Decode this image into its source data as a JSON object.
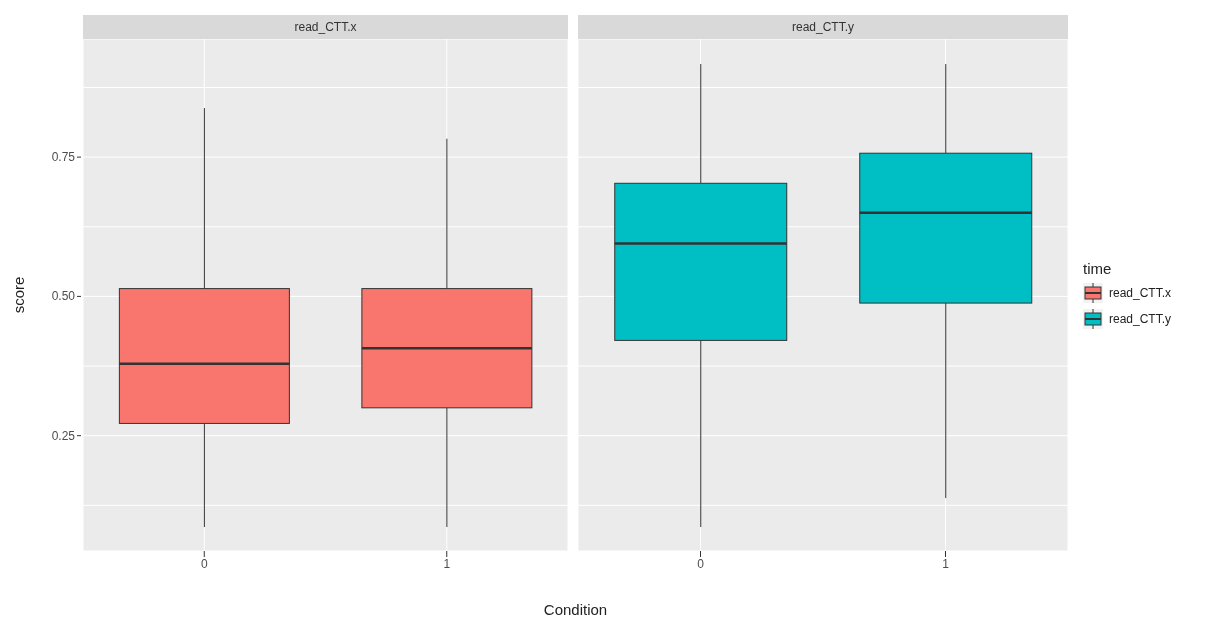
{
  "chart_data": [
    {
      "type": "box",
      "title": "read_CTT.x",
      "xlabel": "Condition",
      "ylabel": "score",
      "legend_title": "time",
      "legend": "right",
      "grid": true,
      "categories": [
        "0",
        "1"
      ],
      "ylim": [
        0.043,
        0.962
      ],
      "yticks": [
        {
          "value": 0.125,
          "label": null
        },
        0.25,
        {
          "value": 0.375,
          "label": null
        },
        {
          "value": 0.5,
          "label": "0.50"
        },
        {
          "value": 0.625,
          "label": null
        },
        0.75,
        {
          "value": 0.875,
          "label": null
        }
      ],
      "series": [
        {
          "name": "read_CTT.x",
          "color": "#f8766d",
          "boxes": [
            {
              "low": 0.086,
              "q1": 0.272,
              "median": 0.379,
              "q3": 0.514,
              "high": 0.838
            },
            {
              "low": 0.086,
              "q1": 0.3,
              "median": 0.407,
              "q3": 0.514,
              "high": 0.783
            }
          ]
        }
      ]
    },
    {
      "type": "box",
      "title": "read_CTT.y",
      "grid": true,
      "tick_labels": "x",
      "categories": [
        "0",
        "1"
      ],
      "ylim": [
        0.043,
        0.962
      ],
      "yticks": [
        0.125,
        0.25,
        0.375,
        0.5,
        0.625,
        0.75,
        0.875
      ],
      "series": [
        {
          "name": "read_CTT.y",
          "color": "#00bfc4",
          "boxes": [
            {
              "low": 0.086,
              "q1": 0.421,
              "median": 0.595,
              "q3": 0.703,
              "high": 0.917
            },
            {
              "low": 0.138,
              "q1": 0.488,
              "median": 0.65,
              "q3": 0.757,
              "high": 0.917
            }
          ]
        }
      ]
    }
  ]
}
